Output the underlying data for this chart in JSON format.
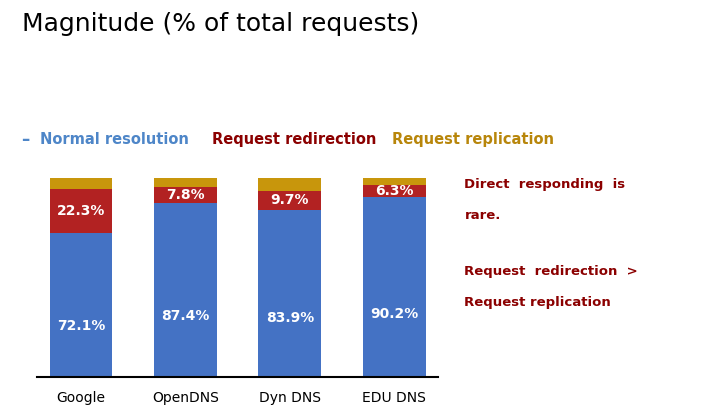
{
  "title": "Magnitude (% of total requests)",
  "title_fontsize": 18,
  "categories": [
    "Google",
    "OpenDNS",
    "Dyn DNS",
    "EDU DNS"
  ],
  "blue_values": [
    72.1,
    87.4,
    83.9,
    90.2
  ],
  "red_values": [
    22.3,
    7.8,
    9.7,
    6.3
  ],
  "gold_values": [
    5.6,
    4.8,
    6.4,
    3.5
  ],
  "blue_color": "#4472C4",
  "red_color": "#B22222",
  "gold_color": "#C8960C",
  "white": "#FFFFFF",
  "legend_blue_color": "#4E86C8",
  "legend_blue_text": "Normal resolution",
  "legend_blue_dash": "–",
  "legend_red_text": "Request redirection",
  "legend_red_color": "#8B0000",
  "legend_gold_text": "Request replication",
  "legend_gold_color": "#B8860B",
  "annotation1_line1": "Direct  responding  is",
  "annotation1_line2": "rare.",
  "annotation2_line1": "Request  redirection  >",
  "annotation2_line2": "Request replication",
  "annotation_color": "#8B0000",
  "bg_color": "#FFFFFF",
  "bar_width": 0.6,
  "ylim": [
    0,
    110
  ]
}
